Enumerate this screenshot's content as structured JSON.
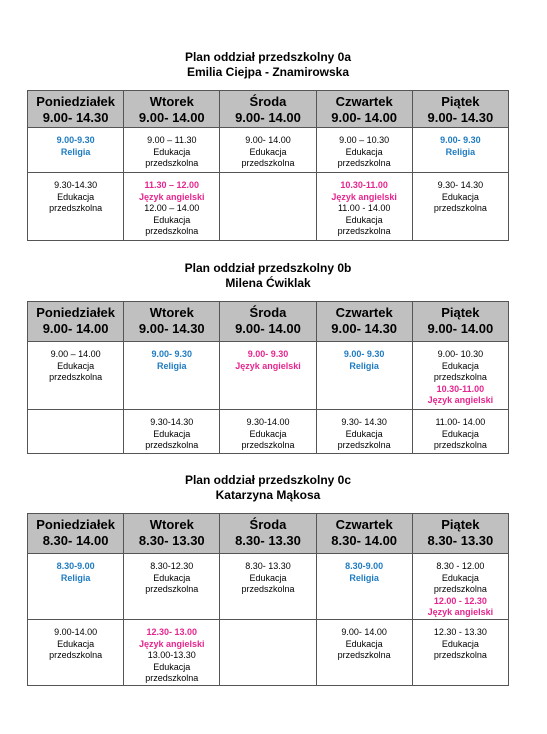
{
  "tables": [
    {
      "title": "Plan oddział przedszkolny 0a",
      "teacher": "Emilia Ciejpa - Znamirowska",
      "headers": [
        {
          "day": "Poniedziałek",
          "hours": "9.00- 14.30"
        },
        {
          "day": "Wtorek",
          "hours": "9.00- 14.00"
        },
        {
          "day": "Środa",
          "hours": "9.00- 14.00"
        },
        {
          "day": "Czwartek",
          "hours": "9.00- 14.00"
        },
        {
          "day": "Piątek",
          "hours": "9.00- 14.30"
        }
      ],
      "rows": [
        [
          [
            {
              "lines": [
                "9.00-9.30",
                "Religia"
              ],
              "color": "#1f7cc2"
            }
          ],
          [
            {
              "lines": [
                "9.00 – 11.30",
                "Edukacja",
                "przedszkolna"
              ]
            }
          ],
          [
            {
              "lines": [
                "9.00- 14.00",
                "Edukacja",
                "przedszkolna"
              ]
            }
          ],
          [
            {
              "lines": [
                "9.00 – 10.30",
                "Edukacja",
                "przedszkolna"
              ]
            }
          ],
          [
            {
              "lines": [
                "9.00- 9.30",
                "Religia"
              ],
              "color": "#1f7cc2"
            }
          ]
        ],
        [
          [
            {
              "lines": [
                "9.30-14.30",
                "Edukacja",
                "przedszkolna"
              ]
            }
          ],
          [
            {
              "lines": [
                "11.30 – 12.00",
                "Język angielski"
              ],
              "color": "#e6268f"
            },
            {
              "lines": [
                "12.00 – 14.00",
                "Edukacja",
                "przedszkolna"
              ]
            }
          ],
          [],
          [
            {
              "lines": [
                "10.30-11.00",
                "Język angielski"
              ],
              "color": "#e6268f"
            },
            {
              "lines": [
                "11.00 - 14.00",
                "Edukacja",
                "przedszkolna"
              ]
            }
          ],
          [
            {
              "lines": [
                "9.30- 14.30",
                "Edukacja",
                "przedszkolna"
              ]
            }
          ]
        ]
      ]
    },
    {
      "title": "Plan oddział przedszkolny 0b",
      "teacher": "Milena Ćwiklak",
      "headers": [
        {
          "day": "Poniedziałek",
          "hours": "9.00- 14.00"
        },
        {
          "day": "Wtorek",
          "hours": "9.00- 14.30"
        },
        {
          "day": "Środa",
          "hours": "9.00- 14.00"
        },
        {
          "day": "Czwartek",
          "hours": "9.00- 14.30"
        },
        {
          "day": "Piątek",
          "hours": "9.00- 14.00"
        }
      ],
      "rows": [
        [
          [
            {
              "lines": [
                "9.00 – 14.00",
                "Edukacja",
                "przedszkolna"
              ]
            }
          ],
          [
            {
              "lines": [
                "9.00- 9.30",
                "Religia"
              ],
              "color": "#1f7cc2"
            }
          ],
          [
            {
              "lines": [
                "9.00- 9.30",
                "Język angielski"
              ],
              "color": "#e6268f"
            }
          ],
          [
            {
              "lines": [
                "9.00- 9.30",
                "Religia"
              ],
              "color": "#1f7cc2"
            }
          ],
          [
            {
              "lines": [
                "9.00- 10.30",
                "Edukacja",
                "przedszkolna"
              ]
            },
            {
              "lines": [
                "10.30-11.00",
                "Język angielski"
              ],
              "color": "#e6268f"
            }
          ]
        ],
        [
          [],
          [
            {
              "lines": [
                "9.30-14.30",
                "Edukacja",
                "przedszkolna"
              ]
            }
          ],
          [
            {
              "lines": [
                "9.30-14.00",
                "Edukacja",
                "przedszkolna"
              ]
            }
          ],
          [
            {
              "lines": [
                "9.30- 14.30",
                "Edukacja",
                "przedszkolna"
              ]
            }
          ],
          [
            {
              "lines": [
                "11.00- 14.00",
                "Edukacja",
                "przedszkolna"
              ]
            }
          ]
        ]
      ]
    },
    {
      "title": "Plan oddział przedszkolny 0c",
      "teacher": "Katarzyna Mąkosa",
      "headers": [
        {
          "day": "Poniedziałek",
          "hours": "8.30- 14.00"
        },
        {
          "day": "Wtorek",
          "hours": "8.30- 13.30"
        },
        {
          "day": "Środa",
          "hours": "8.30- 13.30"
        },
        {
          "day": "Czwartek",
          "hours": "8.30- 14.00"
        },
        {
          "day": "Piątek",
          "hours": "8.30- 13.30"
        }
      ],
      "rows": [
        [
          [
            {
              "lines": [
                "8.30-9.00",
                "Religia"
              ],
              "color": "#1f7cc2"
            }
          ],
          [
            {
              "lines": [
                "8.30-12.30",
                "Edukacja",
                "przedszkolna"
              ]
            }
          ],
          [
            {
              "lines": [
                "8.30- 13.30",
                "Edukacja",
                "przedszkolna"
              ]
            }
          ],
          [
            {
              "lines": [
                "8.30-9.00",
                "Religia"
              ],
              "color": "#1f7cc2"
            }
          ],
          [
            {
              "lines": [
                "8.30 - 12.00",
                "Edukacja",
                "przedszkolna"
              ]
            },
            {
              "lines": [
                "12.00 - 12.30",
                "Język angielski"
              ],
              "color": "#e6268f"
            }
          ]
        ],
        [
          [
            {
              "lines": [
                "9.00-14.00",
                "Edukacja",
                "przedszkolna"
              ]
            }
          ],
          [
            {
              "lines": [
                "12.30- 13.00",
                "Język angielski"
              ],
              "color": "#e6268f"
            },
            {
              "lines": [
                "13.00-13.30",
                "Edukacja",
                "przedszkolna"
              ]
            }
          ],
          [],
          [
            {
              "lines": [
                "9.00- 14.00",
                "Edukacja",
                "przedszkolna"
              ]
            }
          ],
          [
            {
              "lines": [
                "12.30 - 13.30",
                "Edukacja",
                "przedszkolna"
              ]
            }
          ]
        ]
      ]
    }
  ]
}
